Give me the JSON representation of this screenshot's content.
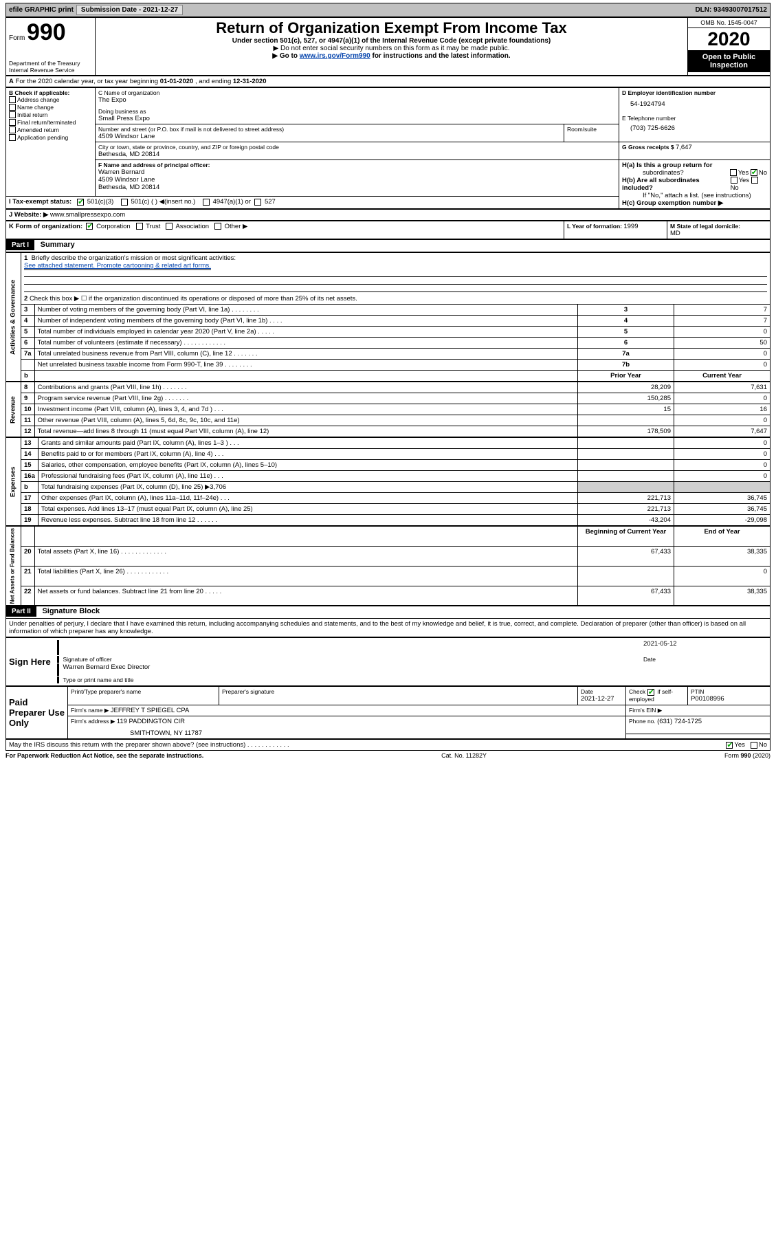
{
  "colors": {
    "topbar_bg": "#c0c0c0",
    "header_black": "#000000",
    "header_white": "#ffffff",
    "link": "#0645ad",
    "grey_cell": "#d0d0d0",
    "check_green": "#00aa00"
  },
  "topbar": {
    "efile": "efile GRAPHIC print",
    "subdate_label": "Submission Date - ",
    "subdate": "2021-12-27",
    "dln_label": "DLN: ",
    "dln": "93493007017512"
  },
  "header": {
    "form_label": "Form",
    "form_no": "990",
    "dept": "Department of the Treasury",
    "irs": "Internal Revenue Service",
    "title": "Return of Organization Exempt From Income Tax",
    "sub1": "Under section 501(c), 527, or 4947(a)(1) of the Internal Revenue Code (except private foundations)",
    "sub2": "▶ Do not enter social security numbers on this form as it may be made public.",
    "sub3a": "▶ Go to ",
    "sub3_link": "www.irs.gov/Form990",
    "sub3b": " for instructions and the latest information.",
    "omb": "OMB No. 1545-0047",
    "year": "2020",
    "openpub1": "Open to Public",
    "openpub2": "Inspection"
  },
  "line_a": {
    "prefix": "A",
    "text": "For the 2020 calendar year, or tax year beginning ",
    "begin": "01-01-2020",
    "mid": " , and ending ",
    "end": "12-31-2020"
  },
  "box_b": {
    "label": "B Check if applicable:",
    "items": [
      "Address change",
      "Name change",
      "Initial return",
      "Final return/terminated",
      "Amended return",
      "Application pending"
    ]
  },
  "box_c": {
    "name_label": "C Name of organization",
    "name": "The Expo",
    "dba_label": "Doing business as",
    "dba": "Small Press Expo",
    "street_label": "Number and street (or P.O. box if mail is not delivered to street address)",
    "room_label": "Room/suite",
    "street": "4509 Windsor Lane",
    "city_label": "City or town, state or province, country, and ZIP or foreign postal code",
    "city": "Bethesda, MD  20814"
  },
  "box_d": {
    "label": "D Employer identification number",
    "val": "54-1924794"
  },
  "box_e": {
    "label": "E Telephone number",
    "val": "(703) 725-6626"
  },
  "box_g": {
    "label": "G Gross receipts $ ",
    "val": "7,647"
  },
  "box_f": {
    "label": "F  Name and address of principal officer:",
    "name": "Warren Bernard",
    "street": "4509 Windsor Lane",
    "city": "Bethesda, MD  20814"
  },
  "box_h": {
    "a_label": "H(a)  Is this a group return for",
    "a_sub": "subordinates?",
    "a_yes": "Yes",
    "a_no": "No",
    "b_label": "H(b)  Are all subordinates included?",
    "b_yes": "Yes",
    "b_no": "No",
    "b_note": "If \"No,\" attach a list. (see instructions)",
    "c_label": "H(c)  Group exemption number ▶"
  },
  "box_i": {
    "label": "I  Tax-exempt status:",
    "opt1": "501(c)(3)",
    "opt2": "501(c) (   ) ◀(insert no.)",
    "opt3": "4947(a)(1) or",
    "opt4": "527"
  },
  "box_j": {
    "label": "J  Website: ▶ ",
    "val": "www.smallpressexpo.com"
  },
  "box_k": {
    "label": "K Form of organization:",
    "opts": [
      "Corporation",
      "Trust",
      "Association",
      "Other ▶"
    ]
  },
  "box_l": {
    "label": "L Year of formation: ",
    "val": "1999"
  },
  "box_m": {
    "label": "M State of legal domicile:",
    "val": "MD"
  },
  "part1": {
    "tag": "Part I",
    "title": "Summary",
    "q1_label": "1",
    "q1": "Briefly describe the organization's mission or most significant activities:",
    "q1_val": "See attached statement. Promote cartooning & related art forms.",
    "q2_label": "2",
    "q2": "Check this box ▶ ☐  if the organization discontinued its operations or disposed of more than 25% of its net assets.",
    "vlabels": {
      "gov": "Activities & Governance",
      "rev": "Revenue",
      "exp": "Expenses",
      "net": "Net Assets or Fund Balances"
    },
    "rows_gov": [
      {
        "n": "3",
        "t": "Number of voting members of the governing body (Part VI, line 1a)  .   .   .   .   .   .   .   .",
        "box": "3",
        "v": "7"
      },
      {
        "n": "4",
        "t": "Number of independent voting members of the governing body (Part VI, line 1b)  .   .   .   .",
        "box": "4",
        "v": "7"
      },
      {
        "n": "5",
        "t": "Total number of individuals employed in calendar year 2020 (Part V, line 2a)  .   .   .   .   .",
        "box": "5",
        "v": "0"
      },
      {
        "n": "6",
        "t": "Total number of volunteers (estimate if necessary)  .   .   .   .   .   .   .   .   .   .   .   .",
        "box": "6",
        "v": "50"
      },
      {
        "n": "7a",
        "t": "Total unrelated business revenue from Part VIII, column (C), line 12  .   .   .   .   .   .   .",
        "box": "7a",
        "v": "0"
      },
      {
        "n": "",
        "t": "Net unrelated business taxable income from Form 990-T, line 39  .   .   .   .   .   .   .   .",
        "box": "7b",
        "v": "0"
      }
    ],
    "col_prior": "Prior Year",
    "col_curr": "Current Year",
    "rows_rev": [
      {
        "n": "8",
        "t": "Contributions and grants (Part VIII, line 1h)  .   .   .   .   .   .   .",
        "p": "28,209",
        "c": "7,631"
      },
      {
        "n": "9",
        "t": "Program service revenue (Part VIII, line 2g)  .   .   .   .   .   .   .",
        "p": "150,285",
        "c": "0"
      },
      {
        "n": "10",
        "t": "Investment income (Part VIII, column (A), lines 3, 4, and 7d )  .   .   .",
        "p": "15",
        "c": "16"
      },
      {
        "n": "11",
        "t": "Other revenue (Part VIII, column (A), lines 5, 6d, 8c, 9c, 10c, and 11e)",
        "p": "",
        "c": "0"
      },
      {
        "n": "12",
        "t": "Total revenue—add lines 8 through 11 (must equal Part VIII, column (A), line 12)",
        "p": "178,509",
        "c": "7,647"
      }
    ],
    "rows_exp": [
      {
        "n": "13",
        "t": "Grants and similar amounts paid (Part IX, column (A), lines 1–3 )  .   .   .",
        "p": "",
        "c": "0"
      },
      {
        "n": "14",
        "t": "Benefits paid to or for members (Part IX, column (A), line 4)   .   .   .",
        "p": "",
        "c": "0"
      },
      {
        "n": "15",
        "t": "Salaries, other compensation, employee benefits (Part IX, column (A), lines 5–10)",
        "p": "",
        "c": "0"
      },
      {
        "n": "16a",
        "t": "Professional fundraising fees (Part IX, column (A), line 11e)  .   .   .",
        "p": "",
        "c": "0"
      },
      {
        "n": "b",
        "t": "Total fundraising expenses (Part IX, column (D), line 25) ▶3,706",
        "p": "GREY",
        "c": "GREY"
      },
      {
        "n": "17",
        "t": "Other expenses (Part IX, column (A), lines 11a–11d, 11f–24e)  .   .   .",
        "p": "221,713",
        "c": "36,745"
      },
      {
        "n": "18",
        "t": "Total expenses. Add lines 13–17 (must equal Part IX, column (A), line 25)",
        "p": "221,713",
        "c": "36,745"
      },
      {
        "n": "19",
        "t": "Revenue less expenses. Subtract line 18 from line 12 .   .   .   .   .   .",
        "p": "-43,204",
        "c": "-29,098"
      }
    ],
    "col_beg": "Beginning of Current Year",
    "col_end": "End of Year",
    "rows_net": [
      {
        "n": "20",
        "t": "Total assets (Part X, line 16)  .   .   .   .   .   .   .   .   .   .   .   .   .",
        "p": "67,433",
        "c": "38,335"
      },
      {
        "n": "21",
        "t": "Total liabilities (Part X, line 26)  .   .   .   .   .   .   .   .   .   .   .   .",
        "p": "",
        "c": "0"
      },
      {
        "n": "22",
        "t": "Net assets or fund balances. Subtract line 21 from line 20 .   .   .   .   .",
        "p": "67,433",
        "c": "38,335"
      }
    ]
  },
  "part2": {
    "tag": "Part II",
    "title": "Signature Block",
    "decl": "Under penalties of perjury, I declare that I have examined this return, including accompanying schedules and statements, and to the best of my knowledge and belief, it is true, correct, and complete. Declaration of preparer (other than officer) is based on all information of which preparer has any knowledge.",
    "sign_here": "Sign Here",
    "sig_officer": "Signature of officer",
    "sig_date_label": "Date",
    "sig_date": "2021-05-12",
    "sig_name": "Warren Bernard  Exec Director",
    "sig_name_label": "Type or print name and title",
    "paid": "Paid Preparer Use Only",
    "prep_name_label": "Print/Type preparer's name",
    "prep_sig_label": "Preparer's signature",
    "prep_date_label": "Date",
    "prep_date": "2021-12-27",
    "prep_check_label": "Check",
    "prep_self": "if self-employed",
    "ptin_label": "PTIN",
    "ptin": "P00108996",
    "firm_name_label": "Firm's name    ▶ ",
    "firm_name": "JEFFREY T SPIEGEL CPA",
    "firm_ein_label": "Firm's EIN ▶",
    "firm_addr_label": "Firm's address ▶ ",
    "firm_addr1": "119 PADDINGTON CIR",
    "firm_addr2": "SMITHTOWN, NY  11787",
    "firm_phone_label": "Phone no. ",
    "firm_phone": "(631) 724-1725",
    "discuss": "May the IRS discuss this return with the preparer shown above? (see instructions)   .   .   .   .   .   .   .   .   .   .   .   .",
    "discuss_yes": "Yes",
    "discuss_no": "No"
  },
  "footer": {
    "left": "For Paperwork Reduction Act Notice, see the separate instructions.",
    "mid": "Cat. No. 11282Y",
    "right": "Form 990 (2020)"
  }
}
